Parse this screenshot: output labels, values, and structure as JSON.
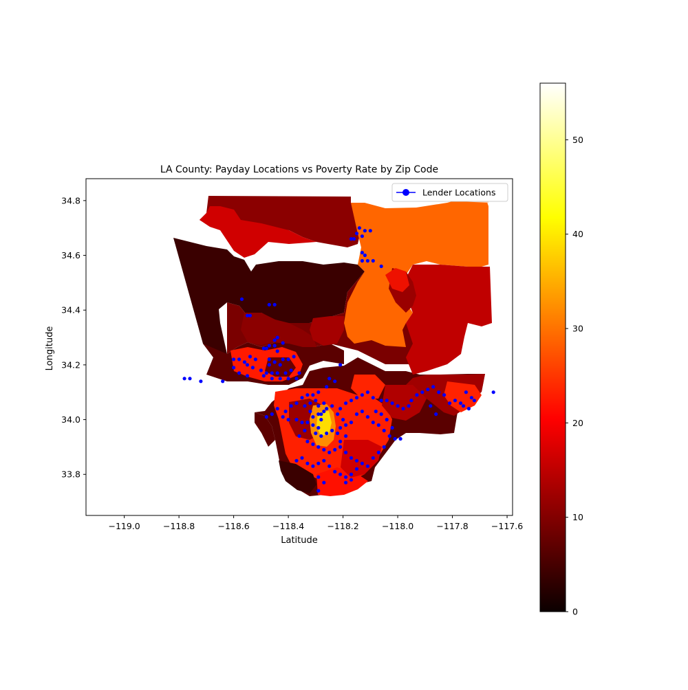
{
  "figure": {
    "title": "LA County: Payday Locations vs Poverty Rate by Zip Code",
    "xlabel": "Latitude",
    "ylabel": "Longitude"
  },
  "legend": {
    "label": "Lender Locations",
    "placement": "upper right",
    "marker_color": "#0000ff"
  },
  "colorbar": {
    "colormap": "hot",
    "range": [
      0,
      56
    ],
    "ticks": [
      "0",
      "10",
      "20",
      "30",
      "40",
      "50"
    ]
  },
  "chart_data": {
    "type": "scatter",
    "title": "LA County: Payday Locations vs Poverty Rate by Zip Code",
    "xlabel": "Latitude",
    "ylabel": "Longitude",
    "xlim": [
      -119.14,
      -117.58
    ],
    "ylim": [
      33.65,
      34.88
    ],
    "x_ticks": [
      "−119.0",
      "−118.8",
      "−118.6",
      "−118.4",
      "−118.2",
      "−118.0",
      "−117.8",
      "−117.6"
    ],
    "y_ticks": [
      "33.8",
      "34.0",
      "34.2",
      "34.4",
      "34.6",
      "34.8"
    ],
    "grid": false,
    "legend_placement": "upper right",
    "series": [
      {
        "name": "Lender Locations",
        "color": "#0000ff",
        "points": [
          [
            -118.14,
            34.7
          ],
          [
            -118.15,
            34.68
          ],
          [
            -118.12,
            34.69
          ],
          [
            -118.1,
            34.69
          ],
          [
            -118.13,
            34.67
          ],
          [
            -118.16,
            34.66
          ],
          [
            -118.12,
            34.6
          ],
          [
            -118.13,
            34.58
          ],
          [
            -118.11,
            34.58
          ],
          [
            -118.09,
            34.58
          ],
          [
            -118.06,
            34.56
          ],
          [
            -118.17,
            34.66
          ],
          [
            -118.13,
            34.61
          ],
          [
            -118.57,
            34.44
          ],
          [
            -118.54,
            34.38
          ],
          [
            -118.45,
            34.42
          ],
          [
            -118.47,
            34.42
          ],
          [
            -118.55,
            34.38
          ],
          [
            -118.45,
            34.29
          ],
          [
            -118.44,
            34.3
          ],
          [
            -118.47,
            34.27
          ],
          [
            -118.45,
            34.27
          ],
          [
            -118.42,
            34.28
          ],
          [
            -118.49,
            34.26
          ],
          [
            -118.44,
            34.25
          ],
          [
            -118.42,
            34.22
          ],
          [
            -118.4,
            34.22
          ],
          [
            -118.38,
            34.23
          ],
          [
            -118.47,
            34.22
          ],
          [
            -118.45,
            34.21
          ],
          [
            -118.43,
            34.2
          ],
          [
            -118.47,
            34.2
          ],
          [
            -118.52,
            34.22
          ],
          [
            -118.55,
            34.2
          ],
          [
            -118.53,
            34.19
          ],
          [
            -118.5,
            34.18
          ],
          [
            -118.48,
            34.17
          ],
          [
            -118.46,
            34.17
          ],
          [
            -118.44,
            34.17
          ],
          [
            -118.41,
            34.17
          ],
          [
            -118.39,
            34.18
          ],
          [
            -118.36,
            34.17
          ],
          [
            -118.37,
            34.15
          ],
          [
            -118.4,
            34.15
          ],
          [
            -118.43,
            34.15
          ],
          [
            -118.46,
            34.15
          ],
          [
            -118.49,
            34.16
          ],
          [
            -118.55,
            34.16
          ],
          [
            -118.58,
            34.17
          ],
          [
            -118.6,
            34.19
          ],
          [
            -118.6,
            34.22
          ],
          [
            -118.58,
            34.22
          ],
          [
            -118.56,
            34.21
          ],
          [
            -118.54,
            34.23
          ],
          [
            -118.48,
            34.26
          ],
          [
            -118.78,
            34.15
          ],
          [
            -118.76,
            34.15
          ],
          [
            -118.72,
            34.14
          ],
          [
            -118.64,
            34.14
          ],
          [
            -118.21,
            34.2
          ],
          [
            -118.25,
            34.15
          ],
          [
            -118.23,
            34.14
          ],
          [
            -118.26,
            34.12
          ],
          [
            -118.29,
            34.1
          ],
          [
            -118.31,
            34.09
          ],
          [
            -118.33,
            34.09
          ],
          [
            -118.35,
            34.08
          ],
          [
            -118.3,
            34.07
          ],
          [
            -118.27,
            34.06
          ],
          [
            -118.24,
            34.05
          ],
          [
            -118.26,
            34.04
          ],
          [
            -118.29,
            34.05
          ],
          [
            -118.32,
            34.06
          ],
          [
            -118.34,
            34.05
          ],
          [
            -118.37,
            34.06
          ],
          [
            -118.39,
            34.05
          ],
          [
            -118.41,
            34.03
          ],
          [
            -118.44,
            34.04
          ],
          [
            -118.46,
            34.02
          ],
          [
            -118.48,
            34.01
          ],
          [
            -118.42,
            34.01
          ],
          [
            -118.4,
            34.0
          ],
          [
            -118.37,
            34.0
          ],
          [
            -118.35,
            33.99
          ],
          [
            -118.33,
            33.99
          ],
          [
            -118.31,
            33.98
          ],
          [
            -118.29,
            33.97
          ],
          [
            -118.28,
            34.0
          ],
          [
            -118.28,
            34.02
          ],
          [
            -118.27,
            34.03
          ],
          [
            -118.29,
            34.02
          ],
          [
            -118.31,
            34.01
          ],
          [
            -118.32,
            34.03
          ],
          [
            -118.3,
            33.95
          ],
          [
            -118.28,
            33.94
          ],
          [
            -118.26,
            33.95
          ],
          [
            -118.24,
            33.96
          ],
          [
            -118.22,
            33.95
          ],
          [
            -118.21,
            33.97
          ],
          [
            -118.19,
            33.98
          ],
          [
            -118.2,
            34.0
          ],
          [
            -118.22,
            34.02
          ],
          [
            -118.21,
            34.04
          ],
          [
            -118.19,
            34.06
          ],
          [
            -118.17,
            34.07
          ],
          [
            -118.15,
            34.08
          ],
          [
            -118.13,
            34.09
          ],
          [
            -118.11,
            34.1
          ],
          [
            -118.09,
            34.08
          ],
          [
            -118.06,
            34.07
          ],
          [
            -118.04,
            34.07
          ],
          [
            -118.02,
            34.06
          ],
          [
            -118.0,
            34.05
          ],
          [
            -117.98,
            34.04
          ],
          [
            -117.96,
            34.05
          ],
          [
            -117.95,
            34.07
          ],
          [
            -117.93,
            34.09
          ],
          [
            -117.91,
            34.1
          ],
          [
            -117.89,
            34.11
          ],
          [
            -117.87,
            34.12
          ],
          [
            -117.85,
            34.1
          ],
          [
            -117.83,
            34.09
          ],
          [
            -117.79,
            34.07
          ],
          [
            -117.75,
            34.1
          ],
          [
            -117.73,
            34.08
          ],
          [
            -117.72,
            34.07
          ],
          [
            -117.76,
            34.05
          ],
          [
            -117.74,
            34.04
          ],
          [
            -117.77,
            34.06
          ],
          [
            -117.81,
            34.06
          ],
          [
            -117.86,
            34.02
          ],
          [
            -117.88,
            34.05
          ],
          [
            -117.65,
            34.1
          ],
          [
            -118.13,
            34.03
          ],
          [
            -118.11,
            34.01
          ],
          [
            -118.09,
            33.99
          ],
          [
            -118.07,
            33.98
          ],
          [
            -118.05,
            33.96
          ],
          [
            -118.03,
            33.94
          ],
          [
            -118.01,
            33.93
          ],
          [
            -117.99,
            33.93
          ],
          [
            -118.02,
            33.97
          ],
          [
            -118.04,
            34.0
          ],
          [
            -118.06,
            34.02
          ],
          [
            -118.08,
            34.03
          ],
          [
            -118.15,
            34.02
          ],
          [
            -118.17,
            33.99
          ],
          [
            -118.34,
            33.96
          ],
          [
            -118.36,
            33.94
          ],
          [
            -118.33,
            33.92
          ],
          [
            -118.31,
            33.91
          ],
          [
            -118.29,
            33.9
          ],
          [
            -118.27,
            33.89
          ],
          [
            -118.25,
            33.88
          ],
          [
            -118.23,
            33.89
          ],
          [
            -118.21,
            33.9
          ],
          [
            -118.19,
            33.88
          ],
          [
            -118.17,
            33.86
          ],
          [
            -118.15,
            33.85
          ],
          [
            -118.13,
            33.84
          ],
          [
            -118.11,
            33.83
          ],
          [
            -118.09,
            33.86
          ],
          [
            -118.07,
            33.88
          ],
          [
            -118.05,
            33.9
          ],
          [
            -118.15,
            33.82
          ],
          [
            -118.17,
            33.8
          ],
          [
            -118.19,
            33.79
          ],
          [
            -118.21,
            33.8
          ],
          [
            -118.23,
            33.81
          ],
          [
            -118.25,
            33.83
          ],
          [
            -118.27,
            33.85
          ],
          [
            -118.29,
            33.84
          ],
          [
            -118.31,
            33.83
          ],
          [
            -118.33,
            33.84
          ],
          [
            -118.35,
            33.86
          ],
          [
            -118.37,
            33.85
          ],
          [
            -118.29,
            33.79
          ],
          [
            -118.27,
            33.77
          ],
          [
            -118.29,
            33.74
          ],
          [
            -118.19,
            33.77
          ],
          [
            -118.17,
            33.78
          ],
          [
            -118.21,
            33.92
          ],
          [
            -118.19,
            33.94
          ]
        ]
      }
    ]
  }
}
